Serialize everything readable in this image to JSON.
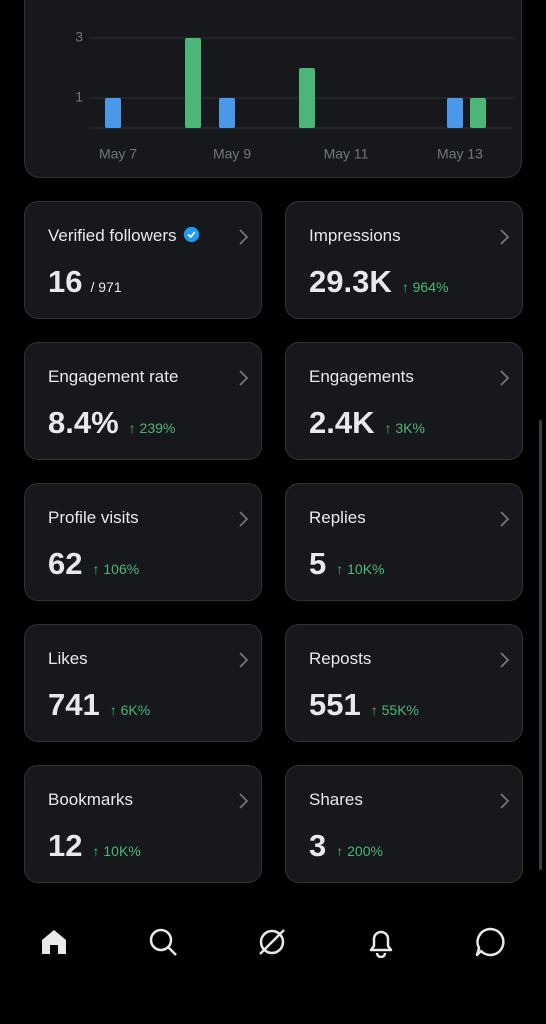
{
  "chart_data": {
    "type": "bar",
    "categories": [
      "May 7",
      null,
      "May 9",
      null,
      "May 11",
      null,
      "May 13"
    ],
    "series": [
      {
        "color": "#4a99e9",
        "values": [
          1,
          0,
          1,
          0,
          0,
          0,
          1
        ]
      },
      {
        "color": "#4cb679",
        "values": [
          0,
          3,
          0,
          2,
          0,
          0,
          1
        ]
      }
    ],
    "ylim": [
      0,
      4
    ],
    "yticks": [
      1,
      3
    ],
    "grid": true
  },
  "cards": [
    {
      "label": "Verified followers",
      "value": "16",
      "sub": "/ 971"
    },
    {
      "label": "Impressions",
      "value": "29.3K",
      "change": "↑ 964%"
    },
    {
      "label": "Engagement rate",
      "value": "8.4%",
      "change": "↑ 239%"
    },
    {
      "label": "Engagements",
      "value": "2.4K",
      "change": "↑ 3K%"
    },
    {
      "label": "Profile visits",
      "value": "62",
      "change": "↑ 106%"
    },
    {
      "label": "Replies",
      "value": "5",
      "change": "↑ 10K%"
    },
    {
      "label": "Likes",
      "value": "741",
      "change": "↑ 6K%"
    },
    {
      "label": "Reposts",
      "value": "551",
      "change": "↑ 55K%"
    },
    {
      "label": "Bookmarks",
      "value": "12",
      "change": "↑ 10K%"
    },
    {
      "label": "Shares",
      "value": "3",
      "change": "↑ 200%"
    }
  ]
}
